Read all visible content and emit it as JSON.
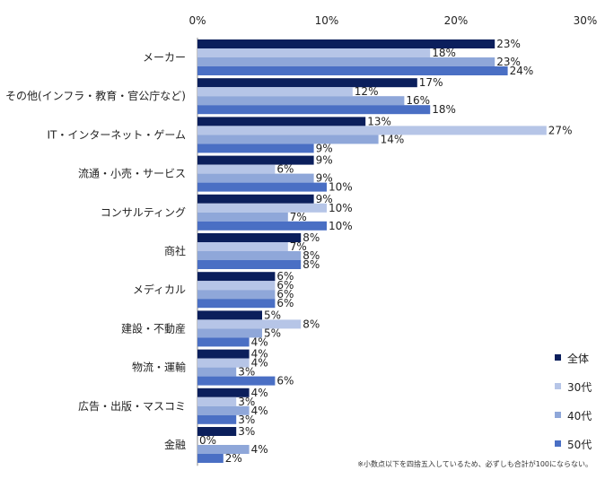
{
  "chart_data": {
    "type": "bar",
    "orientation": "horizontal",
    "xlim": [
      0,
      30
    ],
    "x_ticks": [
      "0%",
      "10%",
      "20%",
      "30%"
    ],
    "x_tick_values": [
      0,
      10,
      20,
      30
    ],
    "categories": [
      "メーカー",
      "その他(インフラ・教育・官公庁など)",
      "IT・インターネット・ゲーム",
      "流通・小売・サービス",
      "コンサルティング",
      "商社",
      "メディカル",
      "建設・不動産",
      "物流・運輸",
      "広告・出版・マスコミ",
      "金融"
    ],
    "series": [
      {
        "name": "全体",
        "color": "#0b1f5c",
        "values": [
          23,
          17,
          13,
          9,
          9,
          8,
          6,
          5,
          4,
          4,
          3
        ]
      },
      {
        "name": "30代",
        "color": "#b6c5e7",
        "values": [
          18,
          12,
          27,
          6,
          10,
          7,
          6,
          8,
          4,
          3,
          0
        ]
      },
      {
        "name": "40代",
        "color": "#8fa7d9",
        "values": [
          23,
          16,
          14,
          9,
          7,
          8,
          6,
          5,
          3,
          4,
          4
        ]
      },
      {
        "name": "50代",
        "color": "#4a6fc4",
        "values": [
          24,
          18,
          9,
          10,
          10,
          8,
          6,
          4,
          6,
          3,
          2
        ]
      }
    ],
    "value_suffix": "%",
    "legend_position": "bottom-right",
    "footnote": "※小数点以下を四捨五入しているため、必ずしも合計が100にならない。"
  }
}
